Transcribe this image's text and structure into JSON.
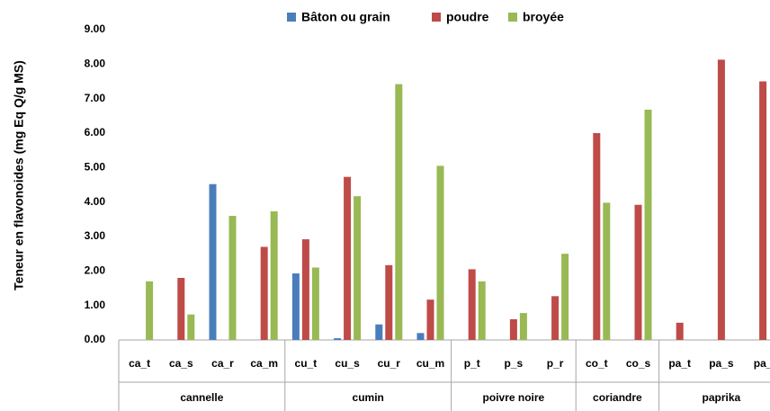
{
  "chart_data": {
    "type": "bar",
    "y_label": "Teneur en flavonoides (mg Eq Q/g MS)",
    "categories": [
      "ca_t",
      "ca_s",
      "ca_r",
      "ca_m",
      "cu_t",
      "cu_s",
      "cu_r",
      "cu_m",
      "p_t",
      "p_s",
      "p_r",
      "co_t",
      "co_s",
      "pa_t",
      "pa_s",
      "pa_"
    ],
    "groups": [
      {
        "name": "cannelle",
        "count": 4
      },
      {
        "name": "cumin",
        "count": 4
      },
      {
        "name": "poivre noire",
        "count": 3
      },
      {
        "name": "coriandre",
        "count": 2
      },
      {
        "name": "paprika",
        "count": 3
      }
    ],
    "series": [
      {
        "name": "Bâton ou grain",
        "color": "#4a7ebb",
        "values": [
          null,
          null,
          4.52,
          null,
          1.93,
          0.05,
          0.45,
          0.2,
          null,
          null,
          null,
          null,
          null,
          null,
          null,
          null
        ]
      },
      {
        "name": "poudre",
        "color": "#be4b48",
        "values": [
          null,
          1.8,
          null,
          2.7,
          2.92,
          4.73,
          2.17,
          1.17,
          2.05,
          0.6,
          1.27,
          6.0,
          3.92,
          0.5,
          8.13,
          7.5
        ]
      },
      {
        "name": "broyée",
        "color": "#98b954",
        "values": [
          1.7,
          0.74,
          3.6,
          3.73,
          2.1,
          4.17,
          7.42,
          5.05,
          1.7,
          0.78,
          2.5,
          3.98,
          6.68,
          null,
          null,
          null
        ]
      }
    ],
    "ylim": [
      0,
      9
    ],
    "yticks": [
      {
        "value": 0,
        "label": "0.00"
      },
      {
        "value": 1,
        "label": "1.00"
      },
      {
        "value": 2,
        "label": "2.00"
      },
      {
        "value": 3,
        "label": "3.00"
      },
      {
        "value": 4,
        "label": "4.00"
      },
      {
        "value": 5,
        "label": "5.00"
      },
      {
        "value": 6,
        "label": "6.00"
      },
      {
        "value": 7,
        "label": "7.00"
      },
      {
        "value": 8,
        "label": "8.00"
      },
      {
        "value": 9,
        "label": "9.00"
      }
    ],
    "grid": false,
    "legend": "top"
  }
}
